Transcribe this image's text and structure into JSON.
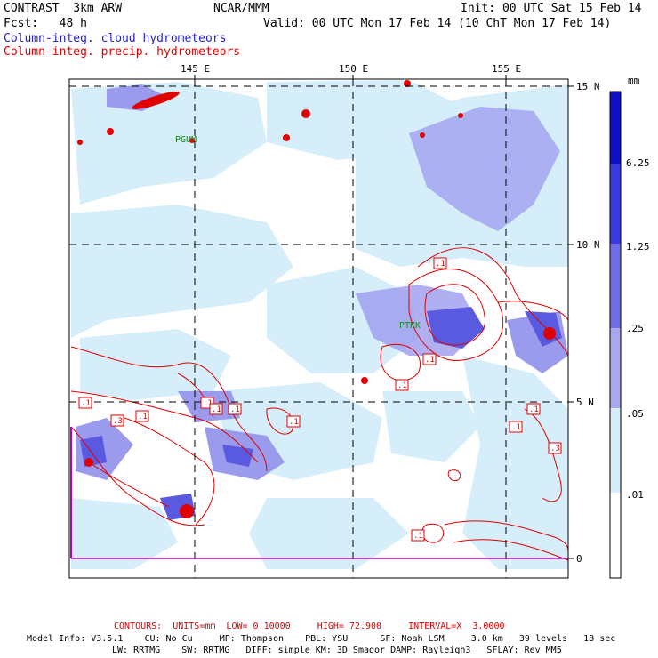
{
  "header": {
    "model": "CONTRAST  3km ARW",
    "org": "NCAR/MMM",
    "init": "Init: 00 UTC Sat 15 Feb 14",
    "fcst": "Fcst:   48 h",
    "valid": "Valid: 00 UTC Mon 17 Feb 14 (10 ChT Mon 17 Feb 14)",
    "field1": "Column-integ. cloud hydrometeors",
    "field2": "Column-integ. precip. hydrometeors"
  },
  "map": {
    "lon_labels": [
      "145 E",
      "150 E",
      "155 E"
    ],
    "lat_labels": [
      "15 N",
      "10 N",
      "5 N",
      "0"
    ],
    "stations": [
      "PGUM",
      "PTKK"
    ],
    "contour_labels": [
      ".1",
      ".1",
      ".3",
      ".1",
      ".1",
      ".1",
      ".1",
      ".1",
      ".1",
      ".1",
      ".1",
      ".1",
      ".3",
      ".1"
    ],
    "colors": {
      "cloud_fill_light": "#d6eefa",
      "cloud_fill_mid": "#9b9bee",
      "cloud_fill_dark": "#5a5ae0",
      "precip_contour": "#e00000",
      "grid": "#000000"
    }
  },
  "colorbar": {
    "unit": "mm",
    "levels": [
      "6.25",
      "1.25",
      ".25",
      ".05",
      ".01"
    ],
    "colors": [
      "#1010c8",
      "#3a3ae0",
      "#7070e6",
      "#a8a8f0",
      "#d6eefa",
      "#ffffff"
    ]
  },
  "footer": {
    "contours": "CONTOURS:  UNITS=mm  LOW= 0.10000     HIGH= 72.900     INTERVAL=X  3.0000",
    "info1": "Model Info: V3.5.1    CU: No Cu     MP: Thompson    PBL: YSU      SF: Noah LSM     3.0 km   39 levels   18 sec",
    "info2": "LW: RRTMG    SW: RRTMG   DIFF: simple KM: 3D Smagor DAMP: Rayleigh3   SFLAY: Rev MM5"
  }
}
